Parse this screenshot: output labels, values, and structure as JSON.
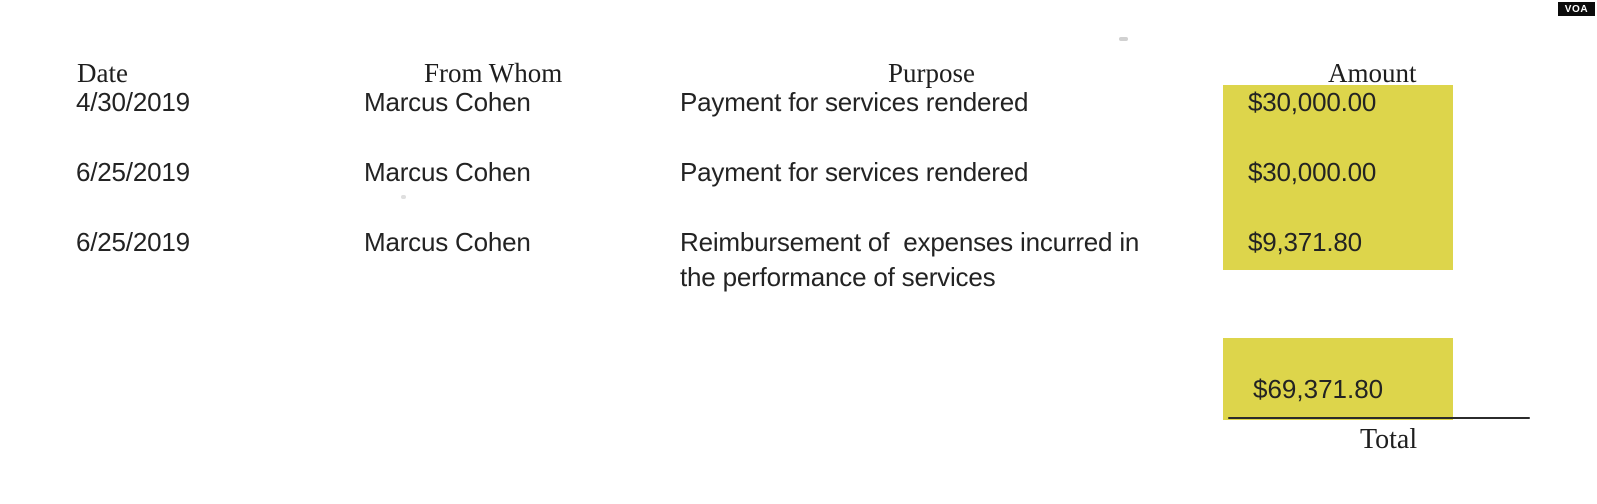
{
  "document": {
    "headers": {
      "date": "Date",
      "from_whom": "From Whom",
      "purpose": "Purpose",
      "amount": "Amount"
    },
    "rows": [
      {
        "date": "4/30/2019",
        "from_whom": "Marcus Cohen",
        "purpose": "Payment for services rendered",
        "amount": "$30,000.00"
      },
      {
        "date": "6/25/2019",
        "from_whom": "Marcus Cohen",
        "purpose": "Payment for services rendered",
        "amount": "$30,000.00"
      },
      {
        "date": "6/25/2019",
        "from_whom": "Marcus Cohen",
        "purpose": "Reimbursement of  expenses incurred in",
        "purpose_line2": "the performance of services",
        "amount": "$9,371.80"
      }
    ],
    "total": {
      "amount": "$69,371.80",
      "label": "Total"
    },
    "highlight_color": "#ddd54b"
  },
  "watermark": {
    "label": "VOA"
  }
}
